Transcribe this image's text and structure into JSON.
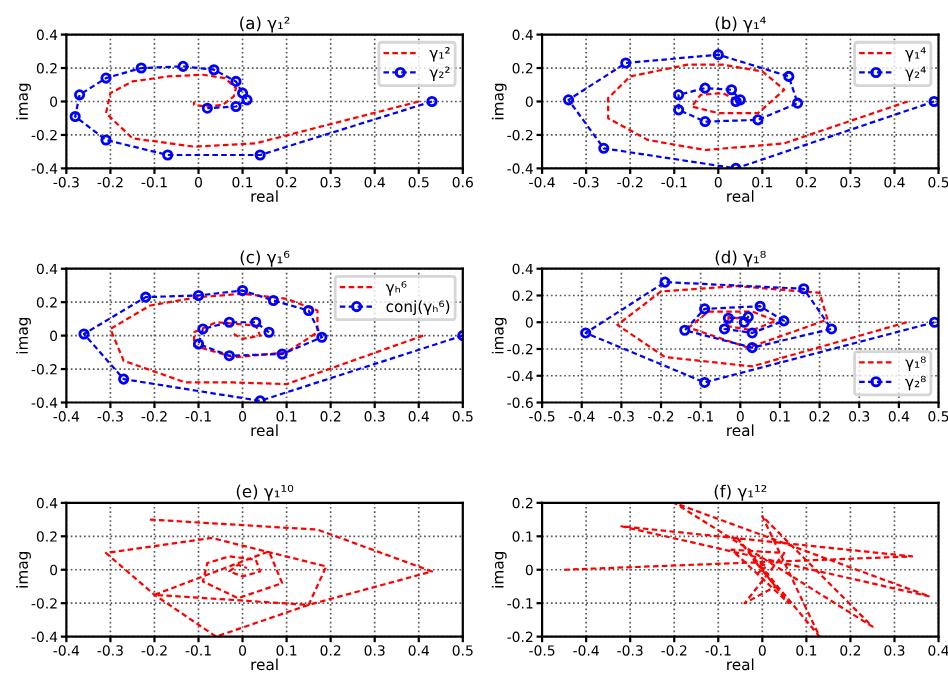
{
  "chart_data": [
    {
      "type": "line",
      "title": "(a) γ₁²",
      "xlabel": "real",
      "ylabel": "imag",
      "xlim": [
        -0.3,
        0.6
      ],
      "ylim": [
        -0.4,
        0.4
      ],
      "xticks": [
        -0.3,
        -0.2,
        -0.1,
        0,
        0.1,
        0.2,
        0.3,
        0.4,
        0.5,
        0.6
      ],
      "yticks": [
        -0.4,
        -0.2,
        0,
        0.2,
        0.4
      ],
      "grid": true,
      "legend": "top right",
      "line_style": "dashed",
      "series": [
        {
          "name": "γ₁²",
          "color": "#ff0000",
          "marker": "none",
          "x": [
            0.5,
            0.13,
            -0.01,
            -0.15,
            -0.21,
            -0.2,
            -0.15,
            -0.07,
            0.01,
            0.06,
            0.085,
            0.08,
            0.055,
            0.015,
            -0.01,
            -0.01
          ],
          "values": [
            0,
            -0.25,
            -0.27,
            -0.22,
            -0.07,
            0.05,
            0.12,
            0.15,
            0.16,
            0.14,
            0.08,
            0.03,
            -0.02,
            -0.03,
            -0.02,
            0
          ]
        },
        {
          "name": "γ₂²",
          "color": "#0000ff",
          "marker": "circle",
          "x": [
            0.53,
            0.14,
            -0.07,
            -0.21,
            -0.28,
            -0.27,
            -0.21,
            -0.13,
            -0.035,
            0.035,
            0.085,
            0.1,
            0.11,
            0.085,
            0.02
          ],
          "values": [
            0,
            -0.32,
            -0.32,
            -0.23,
            -0.09,
            0.04,
            0.14,
            0.2,
            0.21,
            0.19,
            0.12,
            0.05,
            0.01,
            -0.03,
            -0.04
          ]
        }
      ]
    },
    {
      "type": "line",
      "title": "(b) γ₁⁴",
      "xlabel": "real",
      "ylabel": "imag",
      "xlim": [
        -0.4,
        0.5
      ],
      "ylim": [
        -0.4,
        0.4
      ],
      "xticks": [
        -0.4,
        -0.3,
        -0.2,
        -0.1,
        0,
        0.1,
        0.2,
        0.3,
        0.4,
        0.5
      ],
      "yticks": [
        -0.4,
        -0.2,
        0,
        0.2,
        0.4
      ],
      "grid": true,
      "legend": "top right",
      "line_style": "dashed",
      "series": [
        {
          "name": "γ₁⁴",
          "color": "#ff0000",
          "marker": "none",
          "x": [
            0.43,
            0.15,
            -0.03,
            -0.16,
            -0.25,
            -0.25,
            -0.2,
            -0.07,
            0.01,
            0.1,
            0.15,
            0.09,
            0,
            -0.06,
            -0.04,
            0.01,
            0.04
          ],
          "values": [
            0,
            -0.25,
            -0.29,
            -0.23,
            -0.1,
            0.02,
            0.15,
            0.22,
            0.22,
            0.18,
            0.07,
            -0.07,
            -0.07,
            -0.03,
            0.04,
            0.05,
            0.01
          ]
        },
        {
          "name": "γ₂⁴",
          "color": "#0000ff",
          "marker": "circle",
          "x": [
            0.49,
            0.04,
            -0.26,
            -0.34,
            -0.21,
            0,
            0.16,
            0.18,
            0.09,
            -0.03,
            -0.09,
            -0.09,
            -0.03,
            0.03,
            0.05,
            0.04
          ],
          "values": [
            0,
            -0.4,
            -0.28,
            0.01,
            0.23,
            0.28,
            0.15,
            -0.01,
            -0.11,
            -0.12,
            -0.05,
            0.04,
            0.08,
            0.07,
            0.01,
            0
          ]
        }
      ]
    },
    {
      "type": "line",
      "title": "(c) γ₁⁶",
      "xlabel": "real",
      "ylabel": "imag",
      "xlim": [
        -0.4,
        0.5
      ],
      "ylim": [
        -0.4,
        0.4
      ],
      "xticks": [
        -0.4,
        -0.3,
        -0.2,
        -0.1,
        0,
        0.1,
        0.2,
        0.3,
        0.4,
        0.5
      ],
      "yticks": [
        -0.4,
        -0.2,
        0,
        0.2,
        0.4
      ],
      "grid": true,
      "legend": "top right",
      "line_style": "dashed",
      "series": [
        {
          "name": "γₕ⁶",
          "color": "#ff0000",
          "marker": "none",
          "x": [
            0.41,
            0.1,
            -0.02,
            -0.13,
            -0.27,
            -0.3,
            -0.21,
            -0.1,
            0,
            0.1,
            0.17,
            0.17,
            0.1,
            -0.02,
            -0.11,
            -0.11,
            -0.06,
            0.03,
            0.04,
            0,
            -0.02
          ],
          "values": [
            0,
            -0.29,
            -0.28,
            -0.28,
            -0.15,
            0.04,
            0.18,
            0.23,
            0.25,
            0.22,
            0.15,
            0.02,
            -0.1,
            -0.13,
            -0.06,
            0.02,
            0.08,
            0.06,
            0,
            -0.02,
            0.01
          ]
        },
        {
          "name": "conj(γₕ⁶)",
          "color": "#0000ff",
          "marker": "circle",
          "x": [
            0.5,
            0.04,
            -0.27,
            -0.36,
            -0.22,
            -0.1,
            0,
            0.07,
            0.15,
            0.18,
            0.09,
            -0.03,
            -0.1,
            -0.09,
            -0.03,
            0.03,
            0.06
          ],
          "values": [
            0,
            -0.39,
            -0.26,
            0.01,
            0.23,
            0.24,
            0.27,
            0.21,
            0.15,
            -0.01,
            -0.11,
            -0.12,
            -0.05,
            0.04,
            0.08,
            0.08,
            0.02
          ]
        }
      ]
    },
    {
      "type": "line",
      "title": "(d) γ₁⁸",
      "xlabel": "real",
      "ylabel": "imag",
      "xlim": [
        -0.5,
        0.5
      ],
      "ylim": [
        -0.6,
        0.4
      ],
      "xticks": [
        -0.5,
        -0.4,
        -0.3,
        -0.2,
        -0.1,
        0,
        0.1,
        0.2,
        0.3,
        0.4,
        0.5
      ],
      "yticks": [
        -0.6,
        -0.4,
        -0.2,
        0,
        0.2,
        0.4
      ],
      "grid": true,
      "legend": "bottom right",
      "line_style": "dashed",
      "series": [
        {
          "name": "γ₁⁸",
          "color": "#ff0000",
          "marker": "none",
          "x": [
            0.42,
            0.03,
            -0.19,
            -0.31,
            -0.2,
            -0.01,
            0.2,
            0.22,
            0.02,
            -0.13,
            -0.08,
            0.03,
            0.09,
            0.03,
            -0.03,
            -0.03,
            0.02
          ],
          "values": [
            0,
            -0.33,
            -0.26,
            -0.02,
            0.23,
            0.27,
            0.22,
            0.02,
            -0.19,
            -0.04,
            0.08,
            0.08,
            0.01,
            -0.06,
            -0.03,
            0.04,
            0.02
          ]
        },
        {
          "name": "γ₂⁸",
          "color": "#0000ff",
          "marker": "circle",
          "x": [
            0.49,
            -0.09,
            -0.39,
            -0.19,
            0.16,
            0.23,
            0.03,
            -0.14,
            -0.09,
            0.05,
            0.11,
            0.03,
            -0.04,
            -0.03,
            0.02,
            0.01
          ],
          "values": [
            0,
            -0.45,
            -0.08,
            0.3,
            0.25,
            -0.05,
            -0.19,
            -0.06,
            0.1,
            0.12,
            0.01,
            -0.08,
            -0.05,
            0.03,
            0.04,
            0
          ]
        }
      ]
    },
    {
      "type": "line",
      "title": "(e) γ₁¹⁰",
      "xlabel": "real",
      "ylabel": "imag",
      "xlim": [
        -0.4,
        0.5
      ],
      "ylim": [
        -0.4,
        0.4
      ],
      "xticks": [
        -0.4,
        -0.3,
        -0.2,
        -0.1,
        0,
        0.1,
        0.2,
        0.3,
        0.4,
        0.5
      ],
      "yticks": [
        -0.4,
        -0.2,
        0,
        0.2,
        0.4
      ],
      "grid": true,
      "line_style": "dashed",
      "series": [
        {
          "color": "#ff0000",
          "marker": "none",
          "x": [
            -0.21,
            0.17,
            0.43,
            0.15,
            -0.06,
            -0.2,
            -0.31,
            -0.07,
            0.19,
            0.15,
            -0.2,
            0.06,
            0.09,
            -0.01,
            -0.09,
            -0.08,
            -0.03,
            0.03,
            0.04,
            0,
            -0.03,
            -0.01,
            0.01
          ],
          "values": [
            0.3,
            0.24,
            -0.01,
            -0.21,
            -0.4,
            -0.15,
            0.1,
            0.19,
            0.02,
            -0.21,
            -0.15,
            0.11,
            -0.08,
            -0.17,
            -0.07,
            0.04,
            0.08,
            0.06,
            -0.01,
            -0.04,
            -0.01,
            0.03,
            0.01
          ]
        }
      ]
    },
    {
      "type": "line",
      "title": "(f) γ₁¹²",
      "xlabel": "real",
      "ylabel": "imag",
      "xlim": [
        -0.5,
        0.4
      ],
      "ylim": [
        -0.2,
        0.2
      ],
      "xticks": [
        -0.5,
        -0.4,
        -0.3,
        -0.2,
        -0.1,
        0,
        0.1,
        0.2,
        0.3,
        0.4
      ],
      "yticks": [
        -0.2,
        -0.1,
        0,
        0.1,
        0.2
      ],
      "grid": true,
      "line_style": "dashed",
      "series": [
        {
          "color": "#ff0000",
          "marker": "none",
          "x": [
            -0.45,
            0.34,
            -0.32,
            0.38,
            -0.2,
            0.25,
            0,
            0.13,
            -0.06,
            0.06,
            -0.07,
            0.05,
            -0.04,
            0.03,
            -0.02,
            0.01,
            -0.01,
            0
          ],
          "values": [
            0,
            0.04,
            0.13,
            -0.08,
            0.2,
            -0.17,
            0.16,
            -0.2,
            0.1,
            -0.1,
            0.06,
            0.05,
            -0.1,
            -0.05,
            0.03,
            0.01,
            -0.01,
            0
          ]
        }
      ]
    }
  ]
}
